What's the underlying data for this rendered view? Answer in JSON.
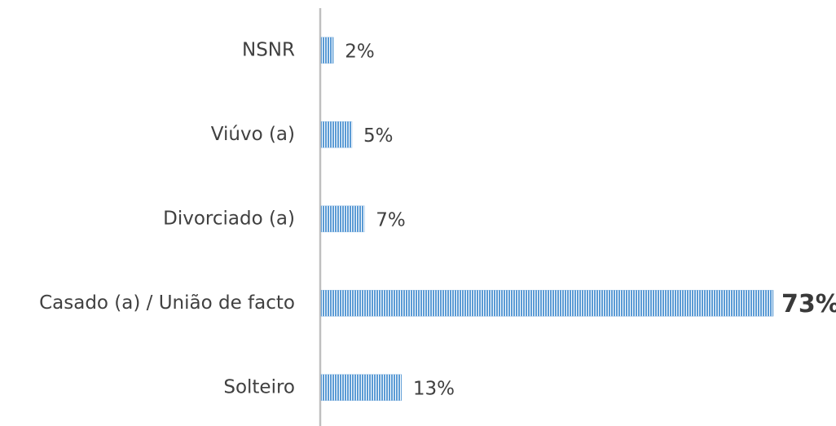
{
  "chart_data": {
    "type": "barh",
    "categories": [
      "NSNR",
      "Viúvo (a)",
      "Divorciado (a)",
      "Casado (a) / União de facto",
      "Solteiro"
    ],
    "values": [
      2,
      5,
      7,
      73,
      13
    ],
    "value_labels": [
      "2%",
      "5%",
      "7%",
      "73%",
      "13%"
    ],
    "bold": [
      false,
      false,
      false,
      true,
      false
    ],
    "color": "#5b9bd5"
  }
}
